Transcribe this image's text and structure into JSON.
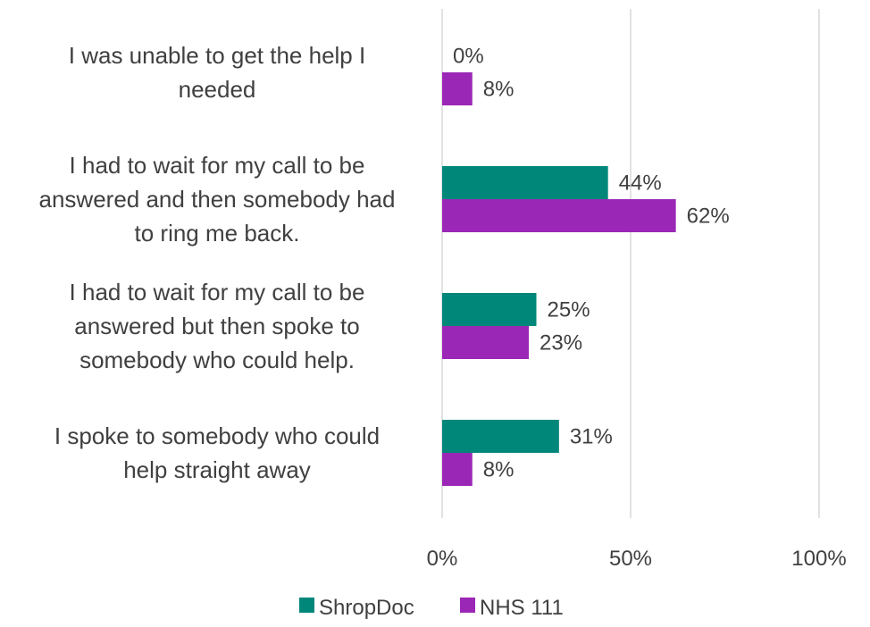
{
  "chart_data": {
    "type": "bar",
    "orientation": "horizontal",
    "categories": [
      [
        "I was unable to get the help I",
        "needed"
      ],
      [
        "I had to wait for my call to be",
        "answered and then somebody had",
        "to ring me back."
      ],
      [
        "I had to wait for my call to be",
        "answered but then spoke to",
        "somebody who could help."
      ],
      [
        "I spoke to somebody who could",
        "help straight away"
      ]
    ],
    "series": [
      {
        "name": "ShropDoc",
        "color": "#00877A",
        "values": [
          0,
          44,
          25,
          31
        ],
        "labels": [
          "0%",
          "44%",
          "25%",
          "31%"
        ]
      },
      {
        "name": "NHS 111",
        "color": "#9B27B6",
        "values": [
          8,
          62,
          23,
          8
        ],
        "labels": [
          "8%",
          "62%",
          "23%",
          "8%"
        ]
      }
    ],
    "xlim": [
      0,
      100
    ],
    "xticks": [
      0,
      50,
      100
    ],
    "xtick_labels": [
      "0%",
      "50%",
      "100%"
    ],
    "grid": true,
    "legend_position": "bottom",
    "gridline_color": "#D9D9D9"
  }
}
